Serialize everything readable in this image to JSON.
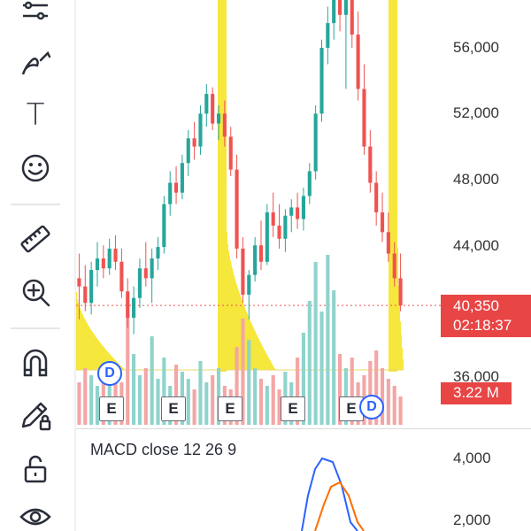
{
  "toolbar": {
    "tools": [
      {
        "icon": "indicators-icon"
      },
      {
        "icon": "brush-icon"
      },
      {
        "icon": "text-icon",
        "glyph": "T"
      },
      {
        "icon": "emoji-icon"
      },
      {
        "icon": "ruler-icon"
      },
      {
        "icon": "zoom-in-icon"
      },
      {
        "icon": "magnet-icon"
      },
      {
        "icon": "lock-drawing-icon"
      },
      {
        "icon": "unlock-icon"
      },
      {
        "icon": "eye-icon"
      }
    ]
  },
  "price_axis": {
    "labels": [
      "56,000",
      "52,000",
      "48,000",
      "44,000",
      "36,000"
    ]
  },
  "last_price": {
    "price": "40,350",
    "countdown": "02:18:37",
    "color": "#e84545"
  },
  "volume_badge": "3.22 M",
  "events": {
    "earnings_label": "E",
    "dividend_label": "D"
  },
  "macd": {
    "title": "MACD close 12 26 9",
    "axis_labels": [
      "4,000",
      "2,000"
    ]
  },
  "colors": {
    "up": "#26a69a",
    "down": "#ef5350",
    "highlight": "#f5e31a",
    "volume_up": "#8fd3cc",
    "volume_down": "#f3a6a5",
    "macd_line": "#2962ff",
    "signal_line": "#ff6d00"
  },
  "chart_data": {
    "type": "candlestick",
    "candles": [
      [
        42000,
        43500,
        39500,
        41500
      ],
      [
        41500,
        42800,
        40000,
        40500
      ],
      [
        40500,
        43000,
        39800,
        42500
      ],
      [
        42500,
        44200,
        41500,
        43200
      ],
      [
        43200,
        44000,
        42000,
        42600
      ],
      [
        42600,
        44400,
        42200,
        43800
      ],
      [
        43800,
        44600,
        42500,
        43000
      ],
      [
        43000,
        43800,
        40800,
        41200
      ],
      [
        41200,
        42000,
        39000,
        39600
      ],
      [
        39600,
        41500,
        38600,
        40800
      ],
      [
        40800,
        43200,
        40200,
        42600
      ],
      [
        42600,
        44200,
        41500,
        42000
      ],
      [
        42000,
        43800,
        40500,
        43200
      ],
      [
        43200,
        44500,
        42500,
        43900
      ],
      [
        43900,
        47000,
        43500,
        46500
      ],
      [
        46500,
        48500,
        45800,
        47800
      ],
      [
        47800,
        48800,
        46500,
        47200
      ],
      [
        47200,
        49500,
        46800,
        49000
      ],
      [
        49000,
        51000,
        48200,
        50500
      ],
      [
        50500,
        51500,
        49200,
        50000
      ],
      [
        50000,
        52500,
        49500,
        52000
      ],
      [
        52000,
        53800,
        51200,
        53200
      ],
      [
        53200,
        53600,
        51000,
        51400
      ],
      [
        51400,
        52500,
        50400,
        52000
      ],
      [
        52000,
        52800,
        50000,
        50600
      ],
      [
        50600,
        51200,
        48200,
        48600
      ],
      [
        48600,
        49500,
        43200,
        43800
      ],
      [
        43800,
        44500,
        40500,
        41000
      ],
      [
        41000,
        42500,
        39500,
        42200
      ],
      [
        42200,
        44500,
        41800,
        44000
      ],
      [
        44000,
        45500,
        42500,
        43000
      ],
      [
        43000,
        46500,
        42800,
        46000
      ],
      [
        46000,
        47200,
        44500,
        45200
      ],
      [
        45200,
        46500,
        43800,
        44400
      ],
      [
        44400,
        46200,
        43600,
        45800
      ],
      [
        45800,
        46800,
        44800,
        46300
      ],
      [
        46300,
        47200,
        45000,
        45600
      ],
      [
        45600,
        47500,
        44900,
        47000
      ],
      [
        47000,
        49000,
        46500,
        48500
      ],
      [
        48500,
        52500,
        48000,
        52000
      ],
      [
        52000,
        56500,
        51500,
        56000
      ],
      [
        56000,
        58500,
        55000,
        57500
      ],
      [
        57500,
        60500,
        56500,
        59500
      ],
      [
        59500,
        60800,
        57000,
        58000
      ],
      [
        58000,
        60000,
        53500,
        59200
      ],
      [
        59200,
        60200,
        56000,
        56800
      ],
      [
        56800,
        58200,
        52800,
        53500
      ],
      [
        53500,
        55000,
        49500,
        50000
      ],
      [
        50000,
        51000,
        47200,
        47800
      ],
      [
        47800,
        48500,
        45200,
        46000
      ],
      [
        46000,
        47200,
        44200,
        44800
      ],
      [
        44800,
        46000,
        43000,
        43500
      ],
      [
        43500,
        44200,
        41500,
        42000
      ],
      [
        42000,
        43500,
        40000,
        40350
      ]
    ],
    "volume": [
      1.2,
      1.6,
      1.4,
      1.1,
      1.3,
      1.8,
      1.5,
      1.2,
      3.2,
      2.0,
      1.4,
      1.6,
      2.5,
      1.3,
      1.9,
      1.1,
      1.7,
      1.5,
      1.3,
      1.0,
      1.8,
      1.2,
      1.4,
      1.6,
      1.1,
      1.0,
      2.2,
      3.0,
      2.4,
      1.6,
      1.3,
      1.1,
      1.4,
      1.0,
      1.5,
      1.2,
      1.9,
      2.6,
      3.5,
      4.6,
      3.2,
      4.8,
      3.8,
      2.0,
      1.6,
      1.9,
      1.2,
      1.4,
      1.8,
      2.1,
      1.6,
      1.3,
      1.1,
      0.8
    ],
    "ylim": [
      35000,
      60500
    ]
  }
}
